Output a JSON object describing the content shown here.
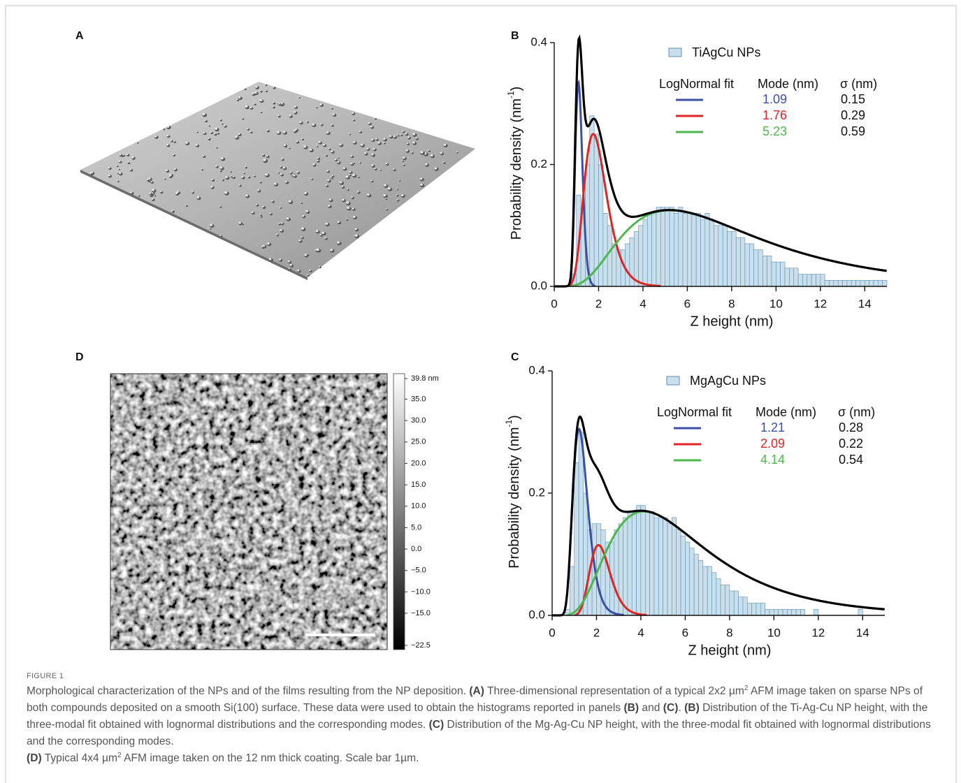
{
  "figure": {
    "panel_labels": [
      "A",
      "B",
      "C",
      "D"
    ]
  },
  "chart_data": [
    {
      "type": "histogram",
      "xlabel": "Z height (nm)",
      "ylabel": "Probability density (nm",
      "ylabel_sup": "-1",
      "ylabel_end": ")",
      "bins": [
        0,
        0.2,
        0.4,
        0.6,
        0.8,
        1,
        1.2,
        1.4,
        1.6,
        1.8,
        2,
        2.2,
        2.4,
        2.6,
        2.8,
        3,
        3.2,
        3.4,
        3.6,
        3.8,
        4,
        4.2,
        4.4,
        4.6,
        4.8,
        5,
        5.2,
        5.4,
        5.6,
        5.8,
        6,
        6.2,
        6.4,
        6.6,
        6.8,
        7,
        7.2,
        7.4,
        7.6,
        7.8,
        8,
        8.2,
        8.4,
        8.6,
        8.8,
        9,
        9.2,
        9.4,
        9.6,
        9.8,
        10,
        10.2,
        10.4,
        10.6,
        10.8,
        11,
        11.2,
        11.4,
        11.6,
        11.8,
        12,
        12.2,
        12.4,
        12.6,
        12.8,
        13,
        13.2,
        13.4,
        13.6,
        13.8,
        14,
        14.2,
        14.4,
        14.6,
        14.8,
        15
      ],
      "series": [
        {
          "name": "TiAgCu NPs",
          "color": "#c9dfec",
          "values": [
            0,
            0,
            0,
            0,
            0.02,
            0.15,
            0.12,
            0.2,
            0.28,
            0.25,
            0.2,
            0.12,
            0.1,
            0.07,
            0.06,
            0.06,
            0.07,
            0.08,
            0.09,
            0.1,
            0.11,
            0.12,
            0.12,
            0.13,
            0.13,
            0.13,
            0.13,
            0.12,
            0.13,
            0.12,
            0.12,
            0.12,
            0.12,
            0.11,
            0.12,
            0.11,
            0.1,
            0.1,
            0.1,
            0.09,
            0.09,
            0.08,
            0.08,
            0.07,
            0.07,
            0.06,
            0.06,
            0.05,
            0.05,
            0.04,
            0.04,
            0.04,
            0.03,
            0.03,
            0.03,
            0.02,
            0.02,
            0.02,
            0.02,
            0.02,
            0.02,
            0.01,
            0.01,
            0.01,
            0.01,
            0.01,
            0.01,
            0.01,
            0.01,
            0.01,
            0.01,
            0.01,
            0.01,
            0.01,
            0.01
          ]
        }
      ],
      "fit_header": [
        "LogNormal fit",
        "Mode (nm)",
        "σ (nm)"
      ],
      "fits": [
        {
          "color": "#3a4fa8",
          "mode": 1.09,
          "sigma": 0.15,
          "peak": 0.335
        },
        {
          "color": "#e02424",
          "mode": 1.76,
          "sigma": 0.29,
          "peak": 0.25
        },
        {
          "color": "#4cb84c",
          "mode": 5.23,
          "sigma": 0.59,
          "peak": 0.125
        }
      ],
      "fit_sum_color": "#000000",
      "xlim": [
        0,
        15
      ],
      "xticks": [
        0,
        2,
        4,
        6,
        8,
        10,
        12,
        14
      ],
      "ylim": [
        0,
        0.4
      ],
      "yticks": [
        {
          "value": 0,
          "label": "0.0"
        },
        0.2,
        0.4
      ]
    },
    {
      "type": "histogram",
      "xlabel": "Z height (nm)",
      "ylabel": "Probability density (nm",
      "ylabel_sup": "-1",
      "ylabel_end": ")",
      "bins": [
        0,
        0.2,
        0.4,
        0.6,
        0.8,
        1,
        1.2,
        1.4,
        1.6,
        1.8,
        2,
        2.2,
        2.4,
        2.6,
        2.8,
        3,
        3.2,
        3.4,
        3.6,
        3.8,
        4,
        4.2,
        4.4,
        4.6,
        4.8,
        5,
        5.2,
        5.4,
        5.6,
        5.8,
        6,
        6.2,
        6.4,
        6.6,
        6.8,
        7,
        7.2,
        7.4,
        7.6,
        7.8,
        8,
        8.2,
        8.4,
        8.6,
        8.8,
        9,
        9.2,
        9.4,
        9.6,
        9.8,
        10,
        10.2,
        10.4,
        10.6,
        10.8,
        11,
        11.2,
        11.4,
        11.6,
        11.8,
        12,
        12.2,
        12.4,
        12.6,
        12.8,
        13,
        13.2,
        13.4,
        13.6,
        13.8,
        14,
        14.2,
        14.4,
        14.6,
        14.8,
        15
      ],
      "series": [
        {
          "name": "MgAgCu NPs",
          "color": "#c9dfec",
          "values": [
            0,
            0,
            0,
            0.01,
            0.08,
            0.25,
            0.3,
            0.2,
            0.14,
            0.15,
            0.15,
            0.14,
            0.12,
            0.12,
            0.14,
            0.15,
            0.16,
            0.17,
            0.17,
            0.18,
            0.18,
            0.17,
            0.17,
            0.16,
            0.16,
            0.16,
            0.15,
            0.16,
            0.14,
            0.13,
            0.12,
            0.11,
            0.1,
            0.09,
            0.08,
            0.08,
            0.07,
            0.06,
            0.05,
            0.05,
            0.04,
            0.04,
            0.03,
            0.03,
            0.02,
            0.02,
            0.02,
            0.02,
            0.01,
            0.01,
            0.01,
            0.01,
            0.01,
            0.01,
            0.01,
            0.01,
            0.01,
            0,
            0,
            0.01,
            0,
            0,
            0,
            0,
            0,
            0,
            0,
            0,
            0,
            0.01,
            0,
            0,
            0,
            0,
            0
          ]
        }
      ],
      "fit_header": [
        "LogNormal fit",
        "Mode (nm)",
        "σ (nm)"
      ],
      "fits": [
        {
          "color": "#3a4fa8",
          "mode": 1.21,
          "sigma": 0.28,
          "peak": 0.305
        },
        {
          "color": "#e02424",
          "mode": 2.09,
          "sigma": 0.22,
          "peak": 0.115
        },
        {
          "color": "#4cb84c",
          "mode": 4.14,
          "sigma": 0.54,
          "peak": 0.17
        }
      ],
      "fit_sum_color": "#000000",
      "xlim": [
        0,
        15
      ],
      "xticks": [
        0,
        2,
        4,
        6,
        8,
        10,
        12,
        14
      ],
      "ylim": [
        0,
        0.4
      ],
      "yticks": [
        {
          "value": 0,
          "label": "0.0"
        },
        0.2,
        0.4
      ]
    }
  ],
  "colorbar": {
    "lim": [
      -22.5,
      39.8
    ],
    "ticks": [
      {
        "value": 39.8,
        "label": "39.8 nm"
      },
      {
        "value": 35,
        "label": "35.0"
      },
      {
        "value": 30,
        "label": "30.0"
      },
      {
        "value": 25,
        "label": "25.0"
      },
      {
        "value": 20,
        "label": "20.0"
      },
      {
        "value": 15,
        "label": "15.0"
      },
      {
        "value": 10,
        "label": "10.0"
      },
      {
        "value": 5,
        "label": "5.0"
      },
      {
        "value": 0,
        "label": "0.0"
      },
      {
        "value": -5,
        "label": "−5.0"
      },
      {
        "value": -10,
        "label": "−10.0"
      },
      {
        "value": -15,
        "label": "−15.0"
      },
      {
        "value": -22.5,
        "label": "−22.5"
      }
    ]
  },
  "caption": {
    "label": "FIGURE 1",
    "runs": [
      "Morphological characterization of the NPs and of the films resulting from the NP deposition. ",
      "(A)",
      " Three-dimensional representation of a typical 2x2 µm",
      "2",
      " AFM image taken on sparse NPs of both compounds deposited on a smooth Si(100) surface. These data were used to obtain the histograms reported in panels ",
      "(B)",
      " and ",
      "(C)",
      ". ",
      "(B)",
      " Distribution of the Ti-Ag-Cu NP height, with the three-modal fit obtained with lognormal distributions and the corresponding modes. ",
      "(C)",
      " Distribution of the Mg-Ag-Cu NP height, with the three-modal fit obtained with lognormal distributions and the corresponding modes.",
      "(D)",
      " Typical 4x4 µm",
      "2",
      " AFM image taken on the 12 nm thick coating. Scale bar 1µm."
    ]
  }
}
